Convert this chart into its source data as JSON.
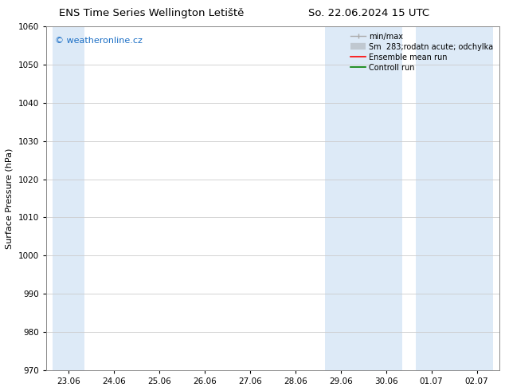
{
  "title_left": "ENS Time Series Wellington Letiště",
  "title_right": "So. 22.06.2024 15 UTC",
  "ylabel": "Surface Pressure (hPa)",
  "ylim": [
    970,
    1060
  ],
  "yticks": [
    970,
    980,
    990,
    1000,
    1010,
    1020,
    1030,
    1040,
    1050,
    1060
  ],
  "xlabel_dates": [
    "23.06",
    "24.06",
    "25.06",
    "26.06",
    "27.06",
    "28.06",
    "29.06",
    "30.06",
    "01.07",
    "02.07"
  ],
  "shaded_indices": [
    0,
    6,
    7,
    8,
    9
  ],
  "shaded_color": "#ddeaf7",
  "watermark_text": "© weatheronline.cz",
  "watermark_color": "#1a6ec5",
  "legend_labels": [
    "min/max",
    "Sm  283;rodatn acute; odchylka",
    "Ensemble mean run",
    "Controll run"
  ],
  "legend_colors": [
    "#aaaaaa",
    "#bbbbbb",
    "red",
    "green"
  ],
  "background_color": "#ffffff",
  "grid_color": "#cccccc",
  "title_fontsize": 9.5,
  "axis_label_fontsize": 8,
  "tick_fontsize": 7.5,
  "watermark_fontsize": 8,
  "legend_fontsize": 7
}
